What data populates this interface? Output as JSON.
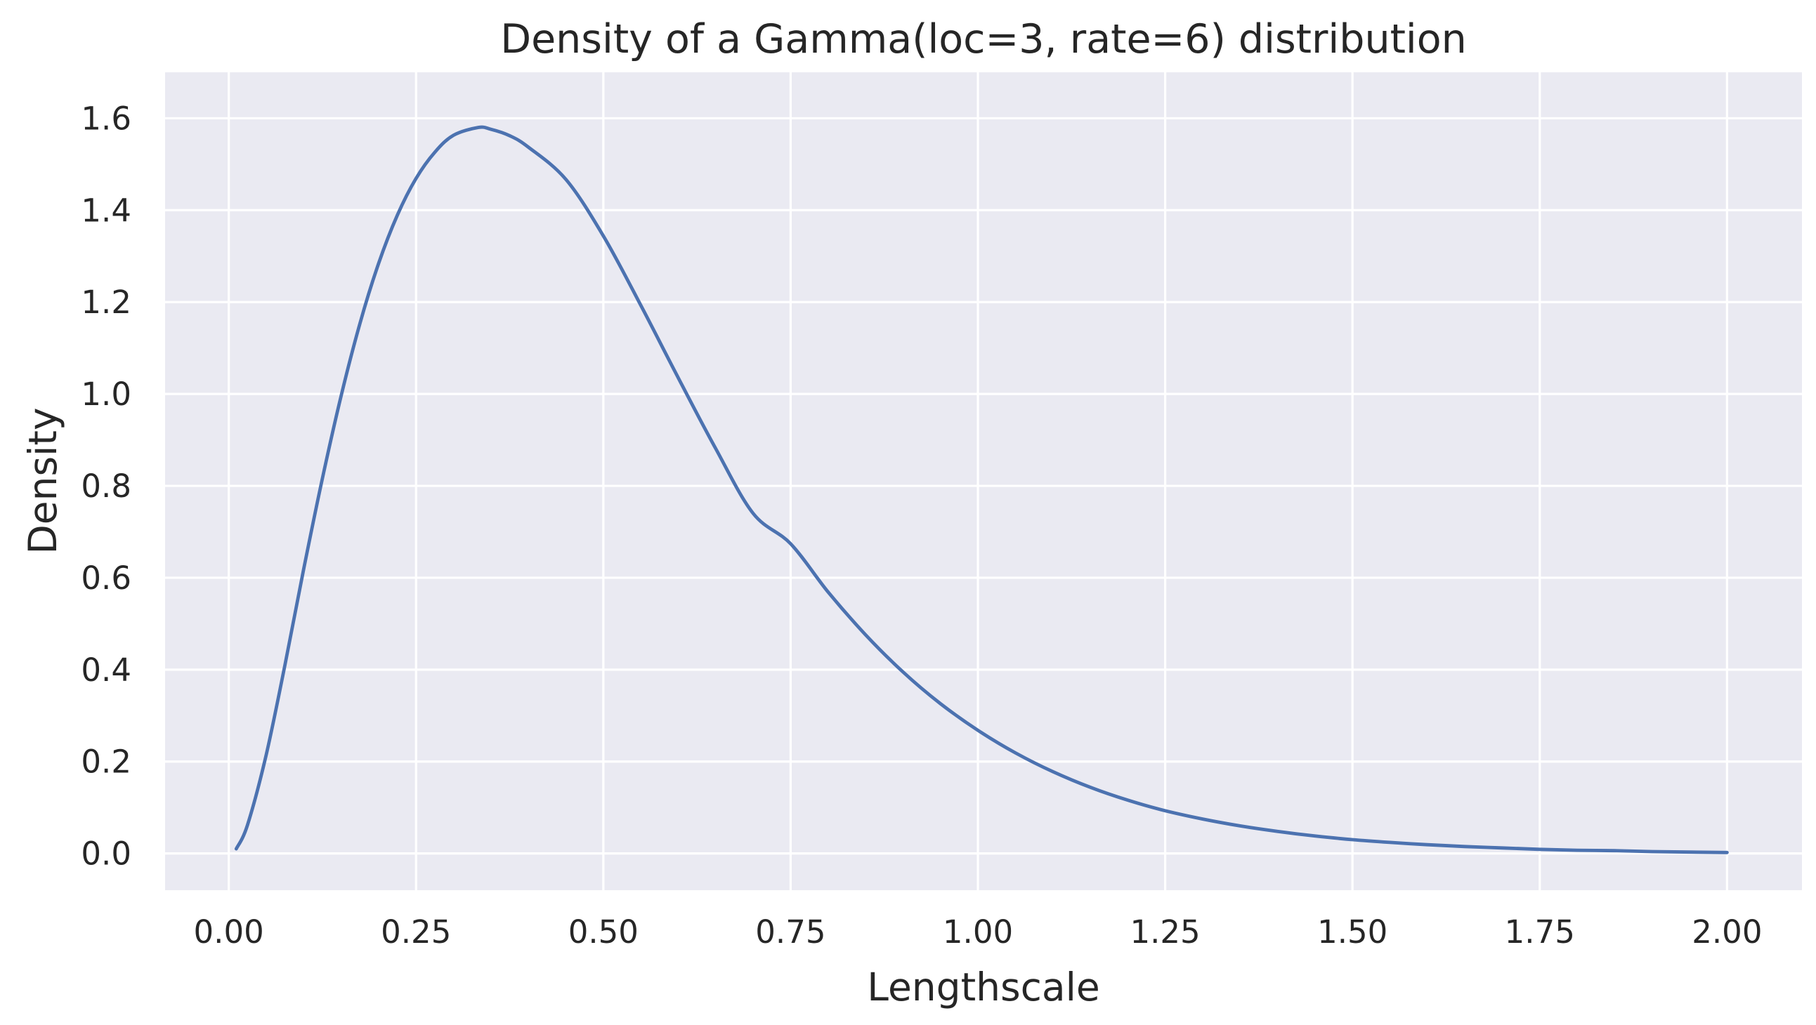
{
  "chart_data": {
    "type": "line",
    "title": "Density of a Gamma(loc=3, rate=6) distribution",
    "xlabel": "Lengthscale",
    "ylabel": "Density",
    "xlim": [
      -0.085,
      2.1
    ],
    "ylim": [
      -0.08,
      1.7
    ],
    "grid": true,
    "legend": "none",
    "colors": {
      "background": "#eaeaf2",
      "grid": "#ffffff",
      "line": "#4c72b0",
      "text": "#262626"
    },
    "xticks": [
      {
        "value": 0.0,
        "label": "0.00"
      },
      {
        "value": 0.25,
        "label": "0.25"
      },
      {
        "value": 0.5,
        "label": "0.50"
      },
      {
        "value": 0.75,
        "label": "0.75"
      },
      {
        "value": 1.0,
        "label": "1.00"
      },
      {
        "value": 1.25,
        "label": "1.25"
      },
      {
        "value": 1.5,
        "label": "1.50"
      },
      {
        "value": 1.75,
        "label": "1.75"
      },
      {
        "value": 2.0,
        "label": "2.00"
      }
    ],
    "yticks": [
      {
        "value": 0.0,
        "label": "0.0"
      },
      {
        "value": 0.2,
        "label": "0.2"
      },
      {
        "value": 0.4,
        "label": "0.4"
      },
      {
        "value": 0.6,
        "label": "0.6"
      },
      {
        "value": 0.8,
        "label": "0.8"
      },
      {
        "value": 1.0,
        "label": "1.0"
      },
      {
        "value": 1.2,
        "label": "1.2"
      },
      {
        "value": 1.4,
        "label": "1.4"
      },
      {
        "value": 1.6,
        "label": "1.6"
      }
    ],
    "series": [
      {
        "x": [
          0.01,
          0.025,
          0.05,
          0.075,
          0.1,
          0.125,
          0.15,
          0.175,
          0.2,
          0.225,
          0.25,
          0.275,
          0.3,
          0.3333,
          0.35,
          0.375,
          0.4,
          0.45,
          0.5,
          0.55,
          0.6,
          0.65,
          0.7,
          0.75,
          0.8,
          0.85,
          0.9,
          0.95,
          1.0,
          1.05,
          1.1,
          1.15,
          1.2,
          1.25,
          1.3,
          1.35,
          1.4,
          1.45,
          1.5,
          1.55,
          1.6,
          1.65,
          1.7,
          1.75,
          1.8,
          1.85,
          1.9,
          1.95,
          2.0
        ],
        "y": [
          0.01,
          0.062,
          0.215,
          0.41,
          0.619,
          0.816,
          0.996,
          1.153,
          1.284,
          1.389,
          1.469,
          1.526,
          1.563,
          1.58,
          1.576,
          1.562,
          1.537,
          1.467,
          1.344,
          1.193,
          1.035,
          0.881,
          0.74,
          0.674,
          0.569,
          0.476,
          0.395,
          0.326,
          0.268,
          0.219,
          0.178,
          0.144,
          0.116,
          0.093,
          0.075,
          0.06,
          0.048,
          0.038,
          0.03,
          0.024,
          0.019,
          0.015,
          0.012,
          0.009,
          0.007,
          0.006,
          0.004,
          0.003,
          0.002
        ]
      }
    ]
  }
}
